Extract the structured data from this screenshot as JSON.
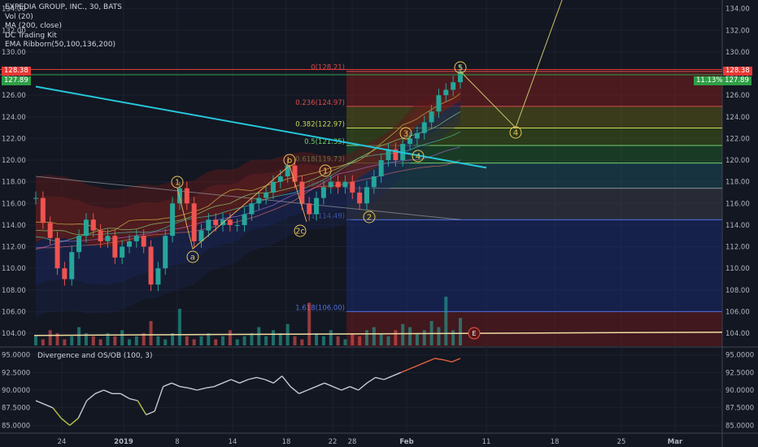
{
  "header": {
    "symbol_title": "EXPEDIA GROUP, INC., 30, BATS",
    "indicators": [
      "Vol (20)",
      "MA (200, close)",
      "DC Trading Kit",
      "EMA Ribborn(50,100,136,200)"
    ]
  },
  "oscillator": {
    "title": "Divergence and OS/OB (100, 3)"
  },
  "tags": {
    "left_top": "128.38",
    "left_bottom": "127.89",
    "right_top": "128.38",
    "right_bottom": "11.13% 127.89"
  },
  "colors": {
    "background": "#131722",
    "up_candle": "#26a69a",
    "down_candle": "#ef5350",
    "candle_body_light": "#d1d4dc",
    "trendline": "#26c6da",
    "wave_label": "#e8c55a",
    "fib_red": "#d84b4b",
    "fib_yellow": "#c9d957",
    "fib_green": "#6fcf6f",
    "fib_blue": "#4f6fdc",
    "tag_red": "#e53935",
    "tag_green": "#2e9e45"
  },
  "wave_labels": [
    "1",
    "a",
    "b",
    "2c",
    "1",
    "2",
    "3",
    "4",
    "5",
    "4"
  ],
  "earnings_marker": "E",
  "chart_data": [
    {
      "type": "line",
      "title": "EXPEDIA GROUP, INC., 30, BATS",
      "chart_style": "candlestick",
      "xlabel": "",
      "ylabel": "",
      "x_tick_labels": [
        "24",
        "2019",
        "8",
        "14",
        "18",
        "22",
        "28",
        "Feb",
        "11",
        "18",
        "25",
        "Mar"
      ],
      "y_tick_labels": [
        "104.00",
        "106.00",
        "108.00",
        "110.00",
        "112.00",
        "114.00",
        "116.00",
        "118.00",
        "120.00",
        "122.00",
        "124.00",
        "126.00",
        "128.00",
        "130.00",
        "132.00",
        "134.00"
      ],
      "ylim": [
        102.8,
        134.5
      ],
      "grid": true,
      "series": [
        {
          "values": [
            116.5,
            114.2,
            112.8,
            110.0,
            109.0,
            111.5,
            113.0,
            114.5,
            113.5,
            112.5,
            113.0,
            111.0,
            112.0,
            112.5,
            113.0,
            112.0,
            108.5,
            110.0,
            113.0,
            116.0,
            117.4,
            116.0,
            112.5,
            113.5,
            114.5,
            114.0,
            114.5,
            114.0,
            114.0,
            115.0,
            116.0,
            116.5,
            117.0,
            118.0,
            118.5,
            119.5,
            118.0,
            116.0,
            115.0,
            116.5,
            117.5,
            118.0,
            117.5,
            118.0,
            117.0,
            116.0,
            117.5,
            118.5,
            120.0,
            121.0,
            120.0,
            121.5,
            122.0,
            122.5,
            123.5,
            124.5,
            126.0,
            126.5,
            127.2,
            128.2
          ]
        }
      ],
      "moving_average": {
        "name": "MA (200, close)",
        "start": 118.5,
        "end": 114.5
      },
      "fibonacci_levels": [
        {
          "label": "0(128.21)",
          "ratio": 0,
          "price": 128.21
        },
        {
          "label": "0.236(124.97)",
          "ratio": 0.236,
          "price": 124.97
        },
        {
          "label": "0.382(122.97)",
          "ratio": 0.382,
          "price": 122.97
        },
        {
          "label": "0.5(121.35)",
          "ratio": 0.5,
          "price": 121.35
        },
        {
          "label": "0.618(119.73)",
          "ratio": 0.618,
          "price": 119.73
        },
        {
          "label": "0.786(117.4)",
          "ratio": 0.786,
          "price": 117.4
        },
        {
          "label": "1(114.49)",
          "ratio": 1,
          "price": 114.49
        },
        {
          "label": "1.618(106.00)",
          "ratio": 1.618,
          "price": 106.0
        }
      ],
      "price_lines": [
        128.38,
        127.89
      ],
      "trendline": {
        "start_price": 126.8,
        "end_price": 119.3
      },
      "volume": [
        3,
        2,
        5,
        4,
        2,
        3,
        6,
        4,
        3,
        2,
        4,
        3,
        5,
        2,
        3,
        4,
        8,
        3,
        2,
        4,
        12,
        3,
        2,
        3,
        4,
        2,
        3,
        5,
        2,
        3,
        4,
        6,
        3,
        5,
        4,
        7,
        3,
        2,
        14,
        4,
        3,
        5,
        3,
        2,
        4,
        3,
        5,
        6,
        4,
        3,
        5,
        7,
        6,
        4,
        5,
        8,
        6,
        16,
        5,
        9
      ]
    },
    {
      "type": "line",
      "title": "Divergence and OS/OB (100, 3)",
      "y_tick_labels": [
        "85.0000",
        "87.5000",
        "90.0000",
        "92.5000",
        "95.0000"
      ],
      "ylim": [
        84.0,
        96.0
      ],
      "grid": true,
      "series": [
        {
          "values": [
            88.5,
            88.0,
            87.5,
            86.0,
            85.0,
            86.0,
            88.5,
            89.5,
            90.0,
            89.5,
            89.5,
            88.8,
            88.5,
            86.5,
            87.0,
            90.5,
            91.0,
            90.5,
            90.3,
            90.0,
            90.3,
            90.5,
            91.0,
            91.5,
            91.0,
            91.5,
            91.8,
            91.5,
            91.0,
            92.0,
            90.5,
            89.5,
            90.0,
            90.5,
            91.0,
            90.5,
            90.0,
            90.5,
            90.0,
            91.0,
            91.8,
            91.5,
            92.0,
            92.5,
            93.0,
            93.5,
            94.0,
            94.5,
            94.3,
            94.0,
            94.5
          ]
        }
      ]
    }
  ]
}
